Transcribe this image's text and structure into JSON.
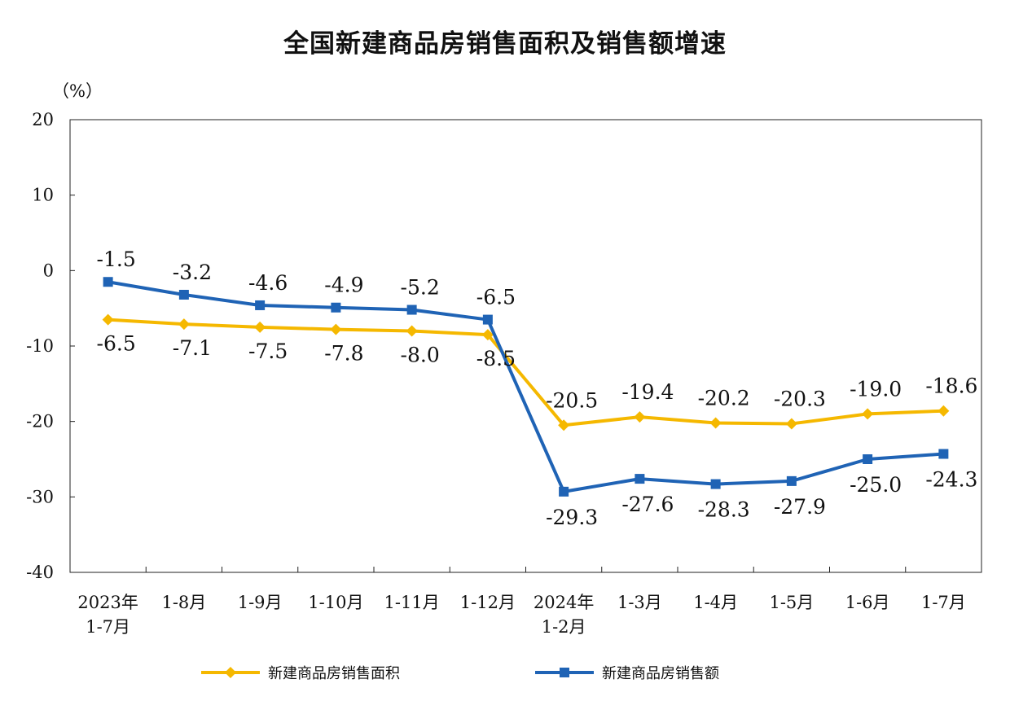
{
  "chart_data": {
    "type": "line",
    "title": "全国新建商品房销售面积及销售额增速",
    "ylabel": "（%）",
    "xlabel": "",
    "ylim": [
      -40,
      20
    ],
    "yticks": [
      20,
      10,
      0,
      -10,
      -20,
      -30,
      -40
    ],
    "grid": false,
    "legend_position": "bottom",
    "categories": [
      [
        "2023年",
        "1-7月"
      ],
      [
        "1-8月"
      ],
      [
        "1-9月"
      ],
      [
        "1-10月"
      ],
      [
        "1-11月"
      ],
      [
        "1-12月"
      ],
      [
        "2024年",
        "1-2月"
      ],
      [
        "1-3月"
      ],
      [
        "1-4月"
      ],
      [
        "1-5月"
      ],
      [
        "1-6月"
      ],
      [
        "1-7月"
      ]
    ],
    "series": [
      {
        "name": "新建商品房销售面积",
        "color": "#F5B800",
        "marker": "diamond",
        "values": [
          -6.5,
          -7.1,
          -7.5,
          -7.8,
          -8.0,
          -8.5,
          -20.5,
          -19.4,
          -20.2,
          -20.3,
          -19.0,
          -18.6
        ],
        "labels": [
          "-6.5",
          "-7.1",
          "-7.5",
          "-7.8",
          "-8.0",
          "-8.5",
          "-20.5",
          "-19.4",
          "-20.2",
          "-20.3",
          "-19.0",
          "-18.6"
        ]
      },
      {
        "name": "新建商品房销售额",
        "color": "#1F63B5",
        "marker": "square",
        "values": [
          -1.5,
          -3.2,
          -4.6,
          -4.9,
          -5.2,
          -6.5,
          -29.3,
          -27.6,
          -28.3,
          -27.9,
          -25.0,
          -24.3
        ],
        "labels": [
          "-1.5",
          "-3.2",
          "-4.6",
          "-4.9",
          "-5.2",
          "-6.5",
          "-29.3",
          "-27.6",
          "-28.3",
          "-27.9",
          "-25.0",
          "-24.3"
        ]
      }
    ]
  }
}
